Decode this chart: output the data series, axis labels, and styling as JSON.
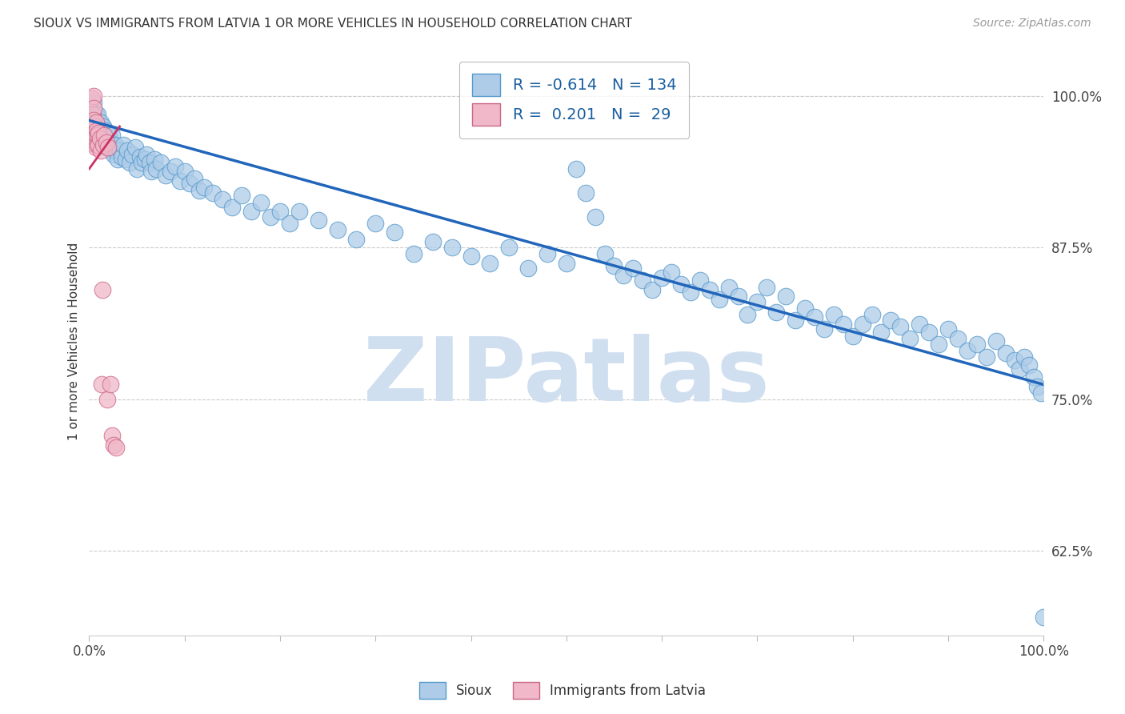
{
  "title": "SIOUX VS IMMIGRANTS FROM LATVIA 1 OR MORE VEHICLES IN HOUSEHOLD CORRELATION CHART",
  "source": "Source: ZipAtlas.com",
  "ylabel": "1 or more Vehicles in Household",
  "xlim": [
    0.0,
    1.0
  ],
  "ylim": [
    0.555,
    1.04
  ],
  "yticks": [
    0.625,
    0.75,
    0.875,
    1.0
  ],
  "ytick_labels": [
    "62.5%",
    "75.0%",
    "87.5%",
    "100.0%"
  ],
  "xtick_positions": [
    0.0,
    0.1,
    0.2,
    0.3,
    0.4,
    0.5,
    0.6,
    0.7,
    0.8,
    0.9,
    1.0
  ],
  "xtick_labels": [
    "0.0%",
    "",
    "",
    "",
    "",
    "",
    "",
    "",
    "",
    "",
    "100.0%"
  ],
  "blue_R": -0.614,
  "blue_N": 134,
  "pink_R": 0.201,
  "pink_N": 29,
  "blue_color": "#aecce8",
  "pink_color": "#f0b8c8",
  "blue_edge_color": "#5599cc",
  "pink_edge_color": "#cc6688",
  "blue_line_color": "#2266bb",
  "pink_line_color": "#cc3366",
  "watermark": "ZIPatlas",
  "watermark_color": "#d0dff0",
  "legend_label_blue": "Sioux",
  "legend_label_pink": "Immigrants from Latvia",
  "blue_line_x0": 0.0,
  "blue_line_y0": 0.98,
  "blue_line_x1": 1.0,
  "blue_line_y1": 0.762,
  "pink_line_x0": 0.0,
  "pink_line_y0": 0.94,
  "pink_line_x1": 0.032,
  "pink_line_y1": 0.975,
  "blue_scatter_x": [
    0.005,
    0.007,
    0.008,
    0.009,
    0.01,
    0.01,
    0.011,
    0.012,
    0.012,
    0.013,
    0.014,
    0.015,
    0.015,
    0.016,
    0.017,
    0.018,
    0.018,
    0.019,
    0.02,
    0.02,
    0.021,
    0.022,
    0.023,
    0.024,
    0.025,
    0.026,
    0.027,
    0.028,
    0.03,
    0.032,
    0.034,
    0.036,
    0.038,
    0.04,
    0.042,
    0.045,
    0.048,
    0.05,
    0.053,
    0.055,
    0.058,
    0.06,
    0.063,
    0.065,
    0.068,
    0.07,
    0.075,
    0.08,
    0.085,
    0.09,
    0.095,
    0.1,
    0.105,
    0.11,
    0.115,
    0.12,
    0.13,
    0.14,
    0.15,
    0.16,
    0.17,
    0.18,
    0.19,
    0.2,
    0.21,
    0.22,
    0.24,
    0.26,
    0.28,
    0.3,
    0.32,
    0.34,
    0.36,
    0.38,
    0.4,
    0.42,
    0.44,
    0.46,
    0.48,
    0.5,
    0.51,
    0.52,
    0.53,
    0.54,
    0.55,
    0.56,
    0.57,
    0.58,
    0.59,
    0.6,
    0.61,
    0.62,
    0.63,
    0.64,
    0.65,
    0.66,
    0.67,
    0.68,
    0.69,
    0.7,
    0.71,
    0.72,
    0.73,
    0.74,
    0.75,
    0.76,
    0.77,
    0.78,
    0.79,
    0.8,
    0.81,
    0.82,
    0.83,
    0.84,
    0.85,
    0.86,
    0.87,
    0.88,
    0.89,
    0.9,
    0.91,
    0.92,
    0.93,
    0.94,
    0.95,
    0.96,
    0.97,
    0.975,
    0.98,
    0.985,
    0.99,
    0.993,
    0.997,
    1.0
  ],
  "blue_scatter_y": [
    0.995,
    0.985,
    0.975,
    0.985,
    0.975,
    0.968,
    0.972,
    0.965,
    0.978,
    0.97,
    0.968,
    0.975,
    0.96,
    0.968,
    0.972,
    0.965,
    0.958,
    0.97,
    0.965,
    0.958,
    0.968,
    0.962,
    0.955,
    0.968,
    0.96,
    0.952,
    0.96,
    0.955,
    0.948,
    0.955,
    0.95,
    0.96,
    0.948,
    0.955,
    0.945,
    0.952,
    0.958,
    0.94,
    0.95,
    0.945,
    0.948,
    0.952,
    0.945,
    0.938,
    0.948,
    0.94,
    0.945,
    0.935,
    0.938,
    0.942,
    0.93,
    0.938,
    0.928,
    0.932,
    0.922,
    0.925,
    0.92,
    0.915,
    0.908,
    0.918,
    0.905,
    0.912,
    0.9,
    0.905,
    0.895,
    0.905,
    0.898,
    0.89,
    0.882,
    0.895,
    0.888,
    0.87,
    0.88,
    0.875,
    0.868,
    0.862,
    0.875,
    0.858,
    0.87,
    0.862,
    0.94,
    0.92,
    0.9,
    0.87,
    0.86,
    0.852,
    0.858,
    0.848,
    0.84,
    0.85,
    0.855,
    0.845,
    0.838,
    0.848,
    0.84,
    0.832,
    0.842,
    0.835,
    0.82,
    0.83,
    0.842,
    0.822,
    0.835,
    0.815,
    0.825,
    0.818,
    0.808,
    0.82,
    0.812,
    0.802,
    0.812,
    0.82,
    0.805,
    0.815,
    0.81,
    0.8,
    0.812,
    0.805,
    0.795,
    0.808,
    0.8,
    0.79,
    0.795,
    0.785,
    0.798,
    0.788,
    0.782,
    0.775,
    0.785,
    0.778,
    0.768,
    0.76,
    0.755,
    0.57
  ],
  "pink_scatter_x": [
    0.003,
    0.004,
    0.004,
    0.005,
    0.005,
    0.005,
    0.006,
    0.006,
    0.007,
    0.007,
    0.007,
    0.008,
    0.008,
    0.009,
    0.01,
    0.01,
    0.011,
    0.012,
    0.013,
    0.014,
    0.015,
    0.016,
    0.018,
    0.019,
    0.02,
    0.022,
    0.024,
    0.026,
    0.028
  ],
  "pink_scatter_y": [
    0.998,
    0.985,
    0.975,
    1.0,
    0.99,
    0.98,
    0.975,
    0.965,
    0.978,
    0.968,
    0.958,
    0.972,
    0.96,
    0.968,
    0.97,
    0.96,
    0.965,
    0.955,
    0.762,
    0.84,
    0.96,
    0.968,
    0.962,
    0.75,
    0.958,
    0.762,
    0.72,
    0.712,
    0.71
  ]
}
